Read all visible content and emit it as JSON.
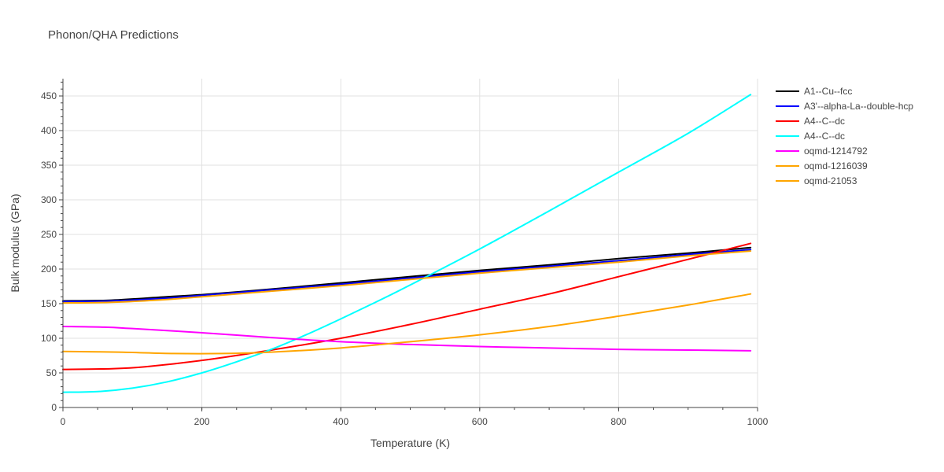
{
  "chart_data": {
    "type": "line",
    "title": "Phonon/QHA Predictions",
    "xlabel": "Temperature (K)",
    "ylabel": "Bulk modulus (GPa)",
    "xlim": [
      0,
      1000
    ],
    "ylim": [
      0,
      475
    ],
    "xticks": [
      0,
      200,
      400,
      600,
      800,
      1000
    ],
    "yticks": [
      0,
      50,
      100,
      150,
      200,
      250,
      300,
      350,
      400,
      450
    ],
    "grid": true,
    "legend_position": "top-right, outside plot",
    "series": [
      {
        "name": "A1--Cu--fcc",
        "color": "#000000",
        "x": [
          0,
          70,
          150,
          200,
          300,
          400,
          500,
          600,
          700,
          800,
          900,
          990
        ],
        "y": [
          154,
          155,
          160,
          163,
          171,
          180,
          189,
          198,
          206,
          215,
          223,
          231
        ]
      },
      {
        "name": "A3'--alpha-La--double-hcp",
        "color": "#0000ff",
        "x": [
          0,
          70,
          150,
          200,
          300,
          400,
          500,
          600,
          700,
          800,
          900,
          990
        ],
        "y": [
          153,
          154,
          158,
          162,
          170,
          178,
          187,
          196,
          204,
          212,
          221,
          228
        ]
      },
      {
        "name": "A4--C--dc",
        "color": "#ff0000",
        "x": [
          0,
          70,
          120,
          200,
          300,
          400,
          500,
          600,
          700,
          800,
          900,
          990
        ],
        "y": [
          55,
          56,
          59,
          68,
          83,
          100,
          120,
          142,
          164,
          189,
          214,
          237
        ]
      },
      {
        "name": "A4--C--dc",
        "color": "#00ffff",
        "x": [
          0,
          50,
          100,
          150,
          200,
          250,
          300,
          350,
          400,
          450,
          500,
          600,
          700,
          800,
          900,
          990
        ],
        "y": [
          22,
          23,
          28,
          37,
          50,
          66,
          84,
          105,
          128,
          152,
          177,
          229,
          284,
          340,
          396,
          452
        ]
      },
      {
        "name": "oqmd-1214792",
        "color": "#ff00ff",
        "x": [
          0,
          60,
          100,
          200,
          300,
          400,
          500,
          600,
          700,
          800,
          900,
          990
        ],
        "y": [
          117,
          116,
          114,
          108,
          101,
          95,
          91,
          88,
          86,
          84,
          83,
          82
        ]
      },
      {
        "name": "oqmd-1216039",
        "color": "#ffa500",
        "x": [
          0,
          70,
          150,
          200,
          300,
          400,
          500,
          600,
          700,
          800,
          900,
          990
        ],
        "y": [
          151,
          152,
          156,
          160,
          168,
          176,
          185,
          194,
          202,
          210,
          219,
          226
        ]
      },
      {
        "name": "oqmd-21053",
        "color": "#ffa500",
        "x": [
          0,
          80,
          160,
          230,
          300,
          400,
          500,
          600,
          700,
          800,
          900,
          990
        ],
        "y": [
          81,
          80,
          78,
          78,
          80,
          86,
          95,
          105,
          117,
          132,
          148,
          164
        ]
      }
    ]
  }
}
